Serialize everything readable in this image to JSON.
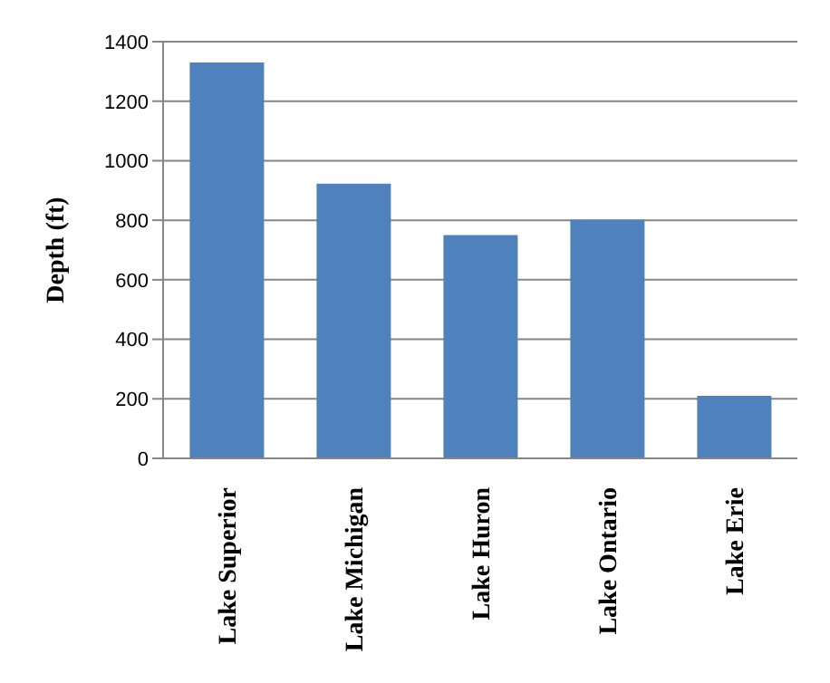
{
  "chart_data": {
    "type": "bar",
    "ylabel": "Depth (ft)",
    "categories": [
      "Lake Superior",
      "Lake Michigan",
      "Lake Huron",
      "Lake Ontario",
      "Lake Erie"
    ],
    "values": [
      1330,
      923,
      750,
      802,
      210
    ],
    "color": "#4f81bd",
    "ylim": [
      0,
      1400
    ],
    "yticks": [
      0,
      200,
      400,
      600,
      800,
      1000,
      1200,
      1400
    ],
    "grid": "y",
    "legend": false
  }
}
